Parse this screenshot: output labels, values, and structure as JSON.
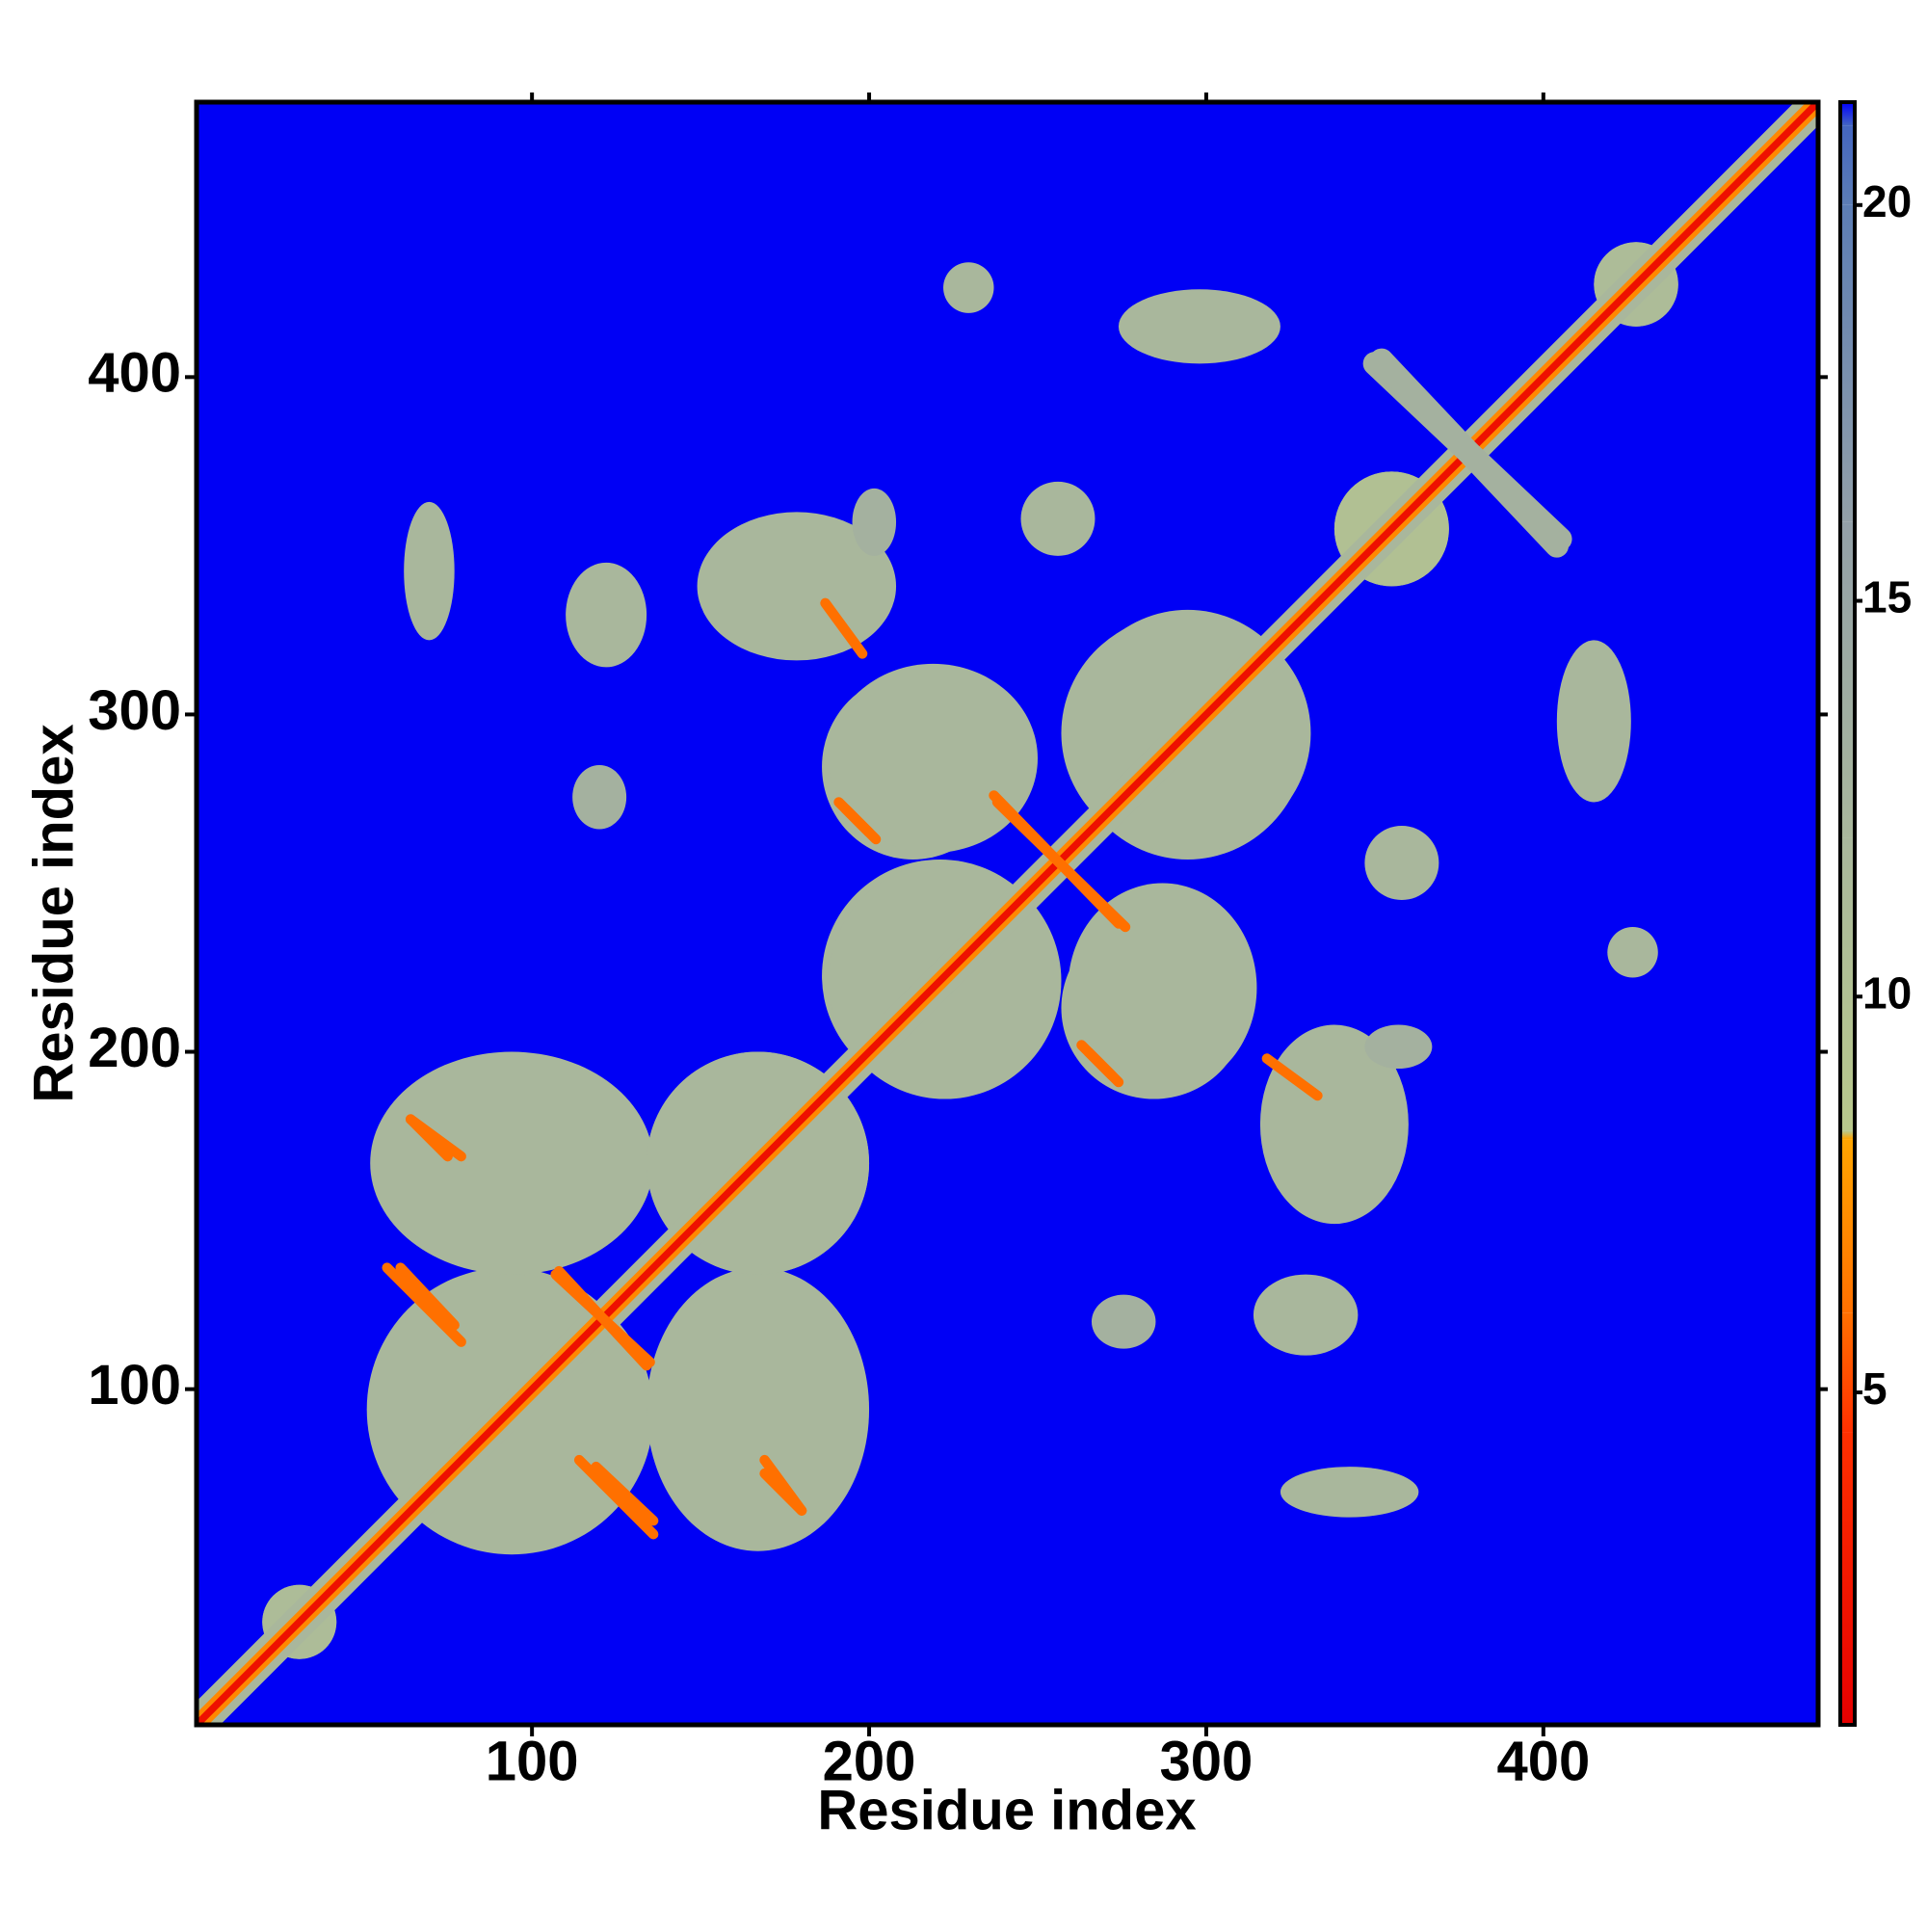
{
  "chart_data": {
    "type": "contact-map",
    "xlabel": "Residue index",
    "ylabel": "Residue index",
    "xlim": [
      0.5,
      481.5
    ],
    "ylim": [
      0.5,
      481.5
    ],
    "xticks": [
      100,
      200,
      300,
      400
    ],
    "yticks": [
      100,
      200,
      300,
      400
    ],
    "background": "#0000f5",
    "symmetric": true,
    "clim": [
      0.8,
      21.3
    ],
    "cticks": [
      5,
      10,
      15,
      20
    ],
    "colorscale": [
      {
        "value": 0.8,
        "color": "#e60000"
      },
      {
        "value": 4.5,
        "color": "#ff3000"
      },
      {
        "value": 6,
        "color": "#ff7000"
      },
      {
        "value": 8.2,
        "color": "#ffa500"
      },
      {
        "value": 8.3,
        "color": "#b8c88c"
      },
      {
        "value": 12,
        "color": "#a9b79c"
      },
      {
        "value": 16,
        "color": "#93a0a8"
      },
      {
        "value": 20,
        "color": "#5c7db4"
      },
      {
        "value": 21,
        "color": "#4466c0"
      },
      {
        "value": 21.3,
        "color": "#0000ff"
      }
    ],
    "patches": [
      {
        "x": [
          51,
          134
        ],
        "y": [
          52,
          136
        ],
        "value": 12
      },
      {
        "x": [
          134,
          200
        ],
        "y": [
          52,
          136
        ],
        "value": 12
      },
      {
        "x": [
          134,
          200
        ],
        "y": [
          134,
          200
        ],
        "value": 12
      },
      {
        "x": [
          186,
          240
        ],
        "y": [
          257,
          312
        ],
        "value": 12
      },
      {
        "x": [
          259,
          330
        ],
        "y": [
          257,
          331
        ],
        "value": 12
      },
      {
        "x": [
          186,
          256
        ],
        "y": [
          188,
          257
        ],
        "value": 12
      },
      {
        "x": [
          259,
          315
        ],
        "y": [
          188,
          250
        ],
        "value": 12
      },
      {
        "x": [
          20,
          42
        ],
        "y": [
          20,
          42
        ],
        "value": 11
      },
      {
        "x": [
          338,
          372
        ],
        "y": [
          338,
          372
        ],
        "value": 10
      },
      {
        "x": [
          415,
          440
        ],
        "y": [
          415,
          440
        ],
        "value": 11
      },
      {
        "x": [
          62,
          77
        ],
        "y": [
          322,
          363
        ],
        "value": 12
      },
      {
        "x": [
          110,
          134
        ],
        "y": [
          314,
          345
        ],
        "value": 12
      },
      {
        "x": [
          149,
          208
        ],
        "y": [
          316,
          360
        ],
        "value": 12
      },
      {
        "x": [
          195,
          208
        ],
        "y": [
          347,
          367
        ],
        "value": 13
      },
      {
        "x": [
          245,
          267
        ],
        "y": [
          347,
          369
        ],
        "value": 12
      },
      {
        "x": [
          222,
          237
        ],
        "y": [
          419,
          434
        ],
        "value": 12
      },
      {
        "x": [
          274,
          322
        ],
        "y": [
          404,
          426
        ],
        "value": 12
      },
      {
        "x": [
          112,
          128
        ],
        "y": [
          266,
          285
        ],
        "value": 13
      }
    ],
    "lines": [
      {
        "from": [
          350,
          404
        ],
        "to": [
          405,
          352
        ],
        "width": 7,
        "value": 13
      },
      {
        "from": [
          57,
          136
        ],
        "to": [
          79,
          114
        ],
        "width": 3,
        "value": 6
      },
      {
        "from": [
          108,
          135
        ],
        "to": [
          134,
          107
        ],
        "width": 3,
        "value": 6
      },
      {
        "from": [
          119,
          77
        ],
        "to": [
          136,
          61
        ],
        "width": 3,
        "value": 6
      },
      {
        "from": [
          169,
          75
        ],
        "to": [
          180,
          64
        ],
        "width": 3,
        "value": 6
      },
      {
        "from": [
          64,
          180
        ],
        "to": [
          79,
          169
        ],
        "width": 3,
        "value": 6
      },
      {
        "from": [
          237,
          276
        ],
        "to": [
          274,
          238
        ],
        "width": 3,
        "value": 6
      },
      {
        "from": [
          193,
          272
        ],
        "to": [
          200,
          265
        ],
        "width": 3,
        "value": 6
      },
      {
        "from": [
          263,
          202
        ],
        "to": [
          274,
          191
        ],
        "width": 3,
        "value": 6
      },
      {
        "from": [
          318,
          198
        ],
        "to": [
          333,
          187
        ],
        "width": 3,
        "value": 6
      }
    ],
    "diagonal": {
      "range": [
        1,
        481
      ],
      "layers": [
        {
          "width": 14,
          "value": 12
        },
        {
          "width": 7,
          "value": 7
        },
        {
          "width": 3,
          "value": 2
        }
      ]
    }
  }
}
